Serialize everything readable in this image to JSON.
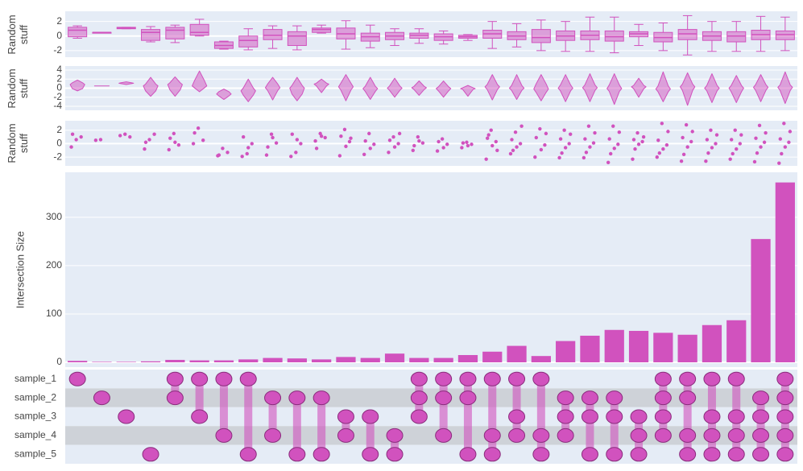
{
  "chart_data": [
    {
      "type": "box",
      "ylabel": "Random stuff",
      "color": "#d152be",
      "ylim": [
        -2.9,
        3.4
      ],
      "yticks": [
        -2,
        0,
        2
      ],
      "values": [
        [
          -0.3,
          -0.1,
          0.8,
          1.2,
          1.4
        ],
        [
          0.5,
          0.5,
          0.5,
          0.5,
          0.5
        ],
        [
          1.0,
          1.0,
          1.1,
          1.2,
          1.2
        ],
        [
          -0.8,
          -0.6,
          0.5,
          0.9,
          1.3
        ],
        [
          -0.9,
          -0.4,
          0.8,
          1.2,
          1.5
        ],
        [
          0,
          0.1,
          0.5,
          1.6,
          2.3
        ],
        [
          -1.8,
          -1.7,
          -1.3,
          -0.8,
          -0.7
        ],
        [
          -1.9,
          -1.5,
          -0.6,
          0,
          1.0
        ],
        [
          -1.7,
          -0.5,
          0.1,
          0.9,
          1.4
        ],
        [
          -1.9,
          -1.3,
          0,
          0.6,
          1.4
        ],
        [
          0.4,
          0.5,
          0.9,
          1.1,
          1.5
        ],
        [
          -1.8,
          -0.4,
          0.3,
          1.1,
          2.1
        ],
        [
          -1.6,
          -0.7,
          -0.1,
          0.4,
          1.5
        ],
        [
          -1.3,
          -0.5,
          0,
          0.5,
          1.0
        ],
        [
          -1.0,
          -0.3,
          0.1,
          0.4,
          1.0
        ],
        [
          -1.1,
          -0.6,
          -0.1,
          0.3,
          0.7
        ],
        [
          -0.6,
          -0.3,
          -0.1,
          0.1,
          0.2
        ],
        [
          -1.7,
          -0.3,
          0.3,
          0.8,
          2.0
        ],
        [
          -1.5,
          -0.5,
          0,
          0.6,
          1.7
        ],
        [
          -2.0,
          -0.9,
          -0.2,
          0.9,
          2.2
        ],
        [
          -2.1,
          -0.6,
          0,
          0.7,
          2.0
        ],
        [
          -2.1,
          -0.5,
          0.1,
          0.7,
          2.6
        ],
        [
          -2.3,
          -0.7,
          -0.1,
          0.7,
          2.6
        ],
        [
          -1.3,
          -0.1,
          0.3,
          0.6,
          1.6
        ],
        [
          -2.0,
          -0.8,
          -0.2,
          0.5,
          1.8
        ],
        [
          -2.6,
          -0.5,
          0.3,
          0.9,
          2.8
        ],
        [
          -2.1,
          -0.6,
          0,
          0.6,
          2.0
        ],
        [
          -2.1,
          -0.8,
          0,
          0.6,
          2.0
        ],
        [
          -2.1,
          -0.5,
          0.2,
          0.8,
          2.7
        ],
        [
          -2.0,
          -0.5,
          0.2,
          0.7,
          2.6
        ]
      ]
    },
    {
      "type": "violin",
      "ylabel": "Random stuff",
      "color": "#d152be",
      "ylim": [
        -4.9,
        4.9
      ],
      "yticks": [
        -4,
        -2,
        0,
        2,
        4
      ],
      "values": [
        [
          -0.6,
          -0.1,
          0.8,
          1.2,
          1.8
        ],
        [
          0.5,
          0.5,
          0.5,
          0.5,
          0.5
        ],
        [
          0.8,
          1.0,
          1.1,
          1.2,
          1.4
        ],
        [
          -1.8,
          -0.6,
          0.5,
          0.9,
          2.4
        ],
        [
          -1.8,
          -0.4,
          0.8,
          1.2,
          2.5
        ],
        [
          -0.8,
          0.1,
          0.5,
          1.6,
          3.8
        ],
        [
          -2.5,
          -1.7,
          -1.3,
          -0.8,
          -0.2
        ],
        [
          -3.0,
          -1.5,
          -0.6,
          0,
          2.0
        ],
        [
          -2.6,
          -0.5,
          0.1,
          0.9,
          2.4
        ],
        [
          -2.8,
          -1.3,
          0,
          0.6,
          2.4
        ],
        [
          -1.0,
          0.5,
          0.9,
          1.1,
          2.0
        ],
        [
          -2.8,
          -0.4,
          0.3,
          1.1,
          3.0
        ],
        [
          -2.5,
          -0.7,
          -0.1,
          0.4,
          2.4
        ],
        [
          -2.0,
          -0.5,
          0,
          0.5,
          2.2
        ],
        [
          -1.6,
          -0.3,
          0.1,
          0.4,
          1.6
        ],
        [
          -2.0,
          -0.6,
          -0.1,
          0.3,
          1.6
        ],
        [
          -1.8,
          -0.3,
          -0.1,
          0.1,
          0.6
        ],
        [
          -2.6,
          -0.3,
          0.3,
          0.8,
          3.0
        ],
        [
          -2.5,
          -0.5,
          0,
          0.6,
          3.0
        ],
        [
          -2.8,
          -0.9,
          -0.2,
          0.9,
          3.0
        ],
        [
          -3.0,
          -0.6,
          0,
          0.7,
          3.0
        ],
        [
          -3.0,
          -0.5,
          0.1,
          0.7,
          3.2
        ],
        [
          -3.6,
          -0.7,
          -0.1,
          0.7,
          3.2
        ],
        [
          -2.0,
          -0.1,
          0.3,
          0.6,
          2.2
        ],
        [
          -3.0,
          -0.8,
          -0.2,
          0.5,
          3.6
        ],
        [
          -3.8,
          -0.5,
          0.3,
          0.9,
          3.4
        ],
        [
          -3.2,
          -0.6,
          0,
          0.6,
          3.2
        ],
        [
          -3.2,
          -0.8,
          0,
          0.6,
          2.8
        ],
        [
          -3.0,
          -0.5,
          0.2,
          0.8,
          3.0
        ],
        [
          -3.4,
          -0.5,
          0.2,
          0.7,
          3.6
        ]
      ]
    },
    {
      "type": "strip",
      "ylabel": "Random stuff",
      "color": "#d152be",
      "ylim": [
        -3.3,
        3.4
      ],
      "yticks": [
        -2,
        0,
        2
      ],
      "values": [
        [
          -0.5,
          0.6,
          1.0,
          1.4
        ],
        [
          0.5,
          0.6
        ],
        [
          1.2,
          1.4,
          1.0
        ],
        [
          -0.8,
          0.6,
          1.4,
          0.2
        ],
        [
          -0.9,
          1.5,
          -0.2,
          0.8,
          0.2
        ],
        [
          0,
          2.3,
          0.5,
          1.6
        ],
        [
          -1.8,
          -0.7,
          -1.3,
          -1.7
        ],
        [
          -1.9,
          -1.5,
          0,
          1.0,
          -0.6
        ],
        [
          -1.7,
          1.4,
          0.1,
          -0.5,
          0.9
        ],
        [
          -1.9,
          -1.3,
          0,
          1.4,
          0.6
        ],
        [
          0.4,
          1.5,
          0.9,
          -0.7,
          1.1
        ],
        [
          -1.8,
          2.1,
          0.3,
          1.1,
          -0.4,
          0.8
        ],
        [
          -1.6,
          1.5,
          -0.1,
          0.4,
          -0.7
        ],
        [
          -1.3,
          1.0,
          0,
          0.5,
          -0.5,
          1.5
        ],
        [
          -1.0,
          1.0,
          0.1,
          -0.3,
          0.4
        ],
        [
          -1.1,
          0.7,
          -0.1,
          0.3,
          -0.6
        ],
        [
          -0.6,
          0.2,
          -0.1,
          0.1,
          -0.3
        ],
        [
          -2.3,
          2.0,
          0.3,
          0.8,
          -0.3,
          -1.0,
          1.3
        ],
        [
          -1.5,
          1.7,
          0,
          0.6,
          -0.5,
          2.6,
          -1.0
        ],
        [
          -2.0,
          2.2,
          -0.2,
          0.9,
          -0.9,
          1.5
        ],
        [
          -2.1,
          2.0,
          0,
          0.7,
          -0.6,
          1.4,
          -1.4
        ],
        [
          -2.1,
          2.6,
          0.1,
          0.7,
          -0.5,
          1.6,
          -1.3
        ],
        [
          -2.8,
          2.6,
          -0.1,
          0.7,
          -0.7,
          1.7,
          -1.5
        ],
        [
          -2.3,
          1.6,
          0.3,
          0.6,
          -0.1,
          1.0,
          -0.8
        ],
        [
          -2.0,
          3.0,
          -0.2,
          0.5,
          -0.8,
          1.8,
          -1.4
        ],
        [
          -2.6,
          2.8,
          0.3,
          0.9,
          -0.5,
          1.8,
          -1.6
        ],
        [
          -2.6,
          2.0,
          0,
          0.6,
          -0.6,
          1.3,
          -1.4
        ],
        [
          -2.3,
          2.0,
          0,
          0.6,
          -0.8,
          1.3,
          -1.5
        ],
        [
          -2.7,
          2.7,
          0.2,
          0.8,
          -0.5,
          1.6,
          -1.4
        ],
        [
          -2.9,
          3.0,
          0.2,
          0.7,
          -0.5,
          1.8,
          -1.5
        ]
      ]
    },
    {
      "type": "bar",
      "ylabel": "Intersection Size",
      "color": "#d152be",
      "ylim": [
        -10,
        393
      ],
      "yticks": [
        0,
        100,
        200,
        300
      ],
      "grid": true,
      "values": [
        3,
        1,
        1,
        2,
        5,
        4,
        4,
        6,
        9,
        8,
        6,
        11,
        9,
        18,
        9,
        9,
        15,
        22,
        34,
        13,
        44,
        55,
        67,
        65,
        61,
        57,
        77,
        87,
        255,
        372
      ],
      "sets": [
        "sample_1",
        "sample_2",
        "sample_3",
        "sample_4",
        "sample_5"
      ],
      "membership": [
        [
          0
        ],
        [
          1
        ],
        [
          2
        ],
        [
          4
        ],
        [
          0,
          1
        ],
        [
          0,
          2
        ],
        [
          0,
          3
        ],
        [
          0,
          4
        ],
        [
          1,
          3
        ],
        [
          1,
          4
        ],
        [
          1,
          4
        ],
        [
          2,
          3
        ],
        [
          2,
          4
        ],
        [
          3,
          4
        ],
        [
          0,
          1,
          2
        ],
        [
          0,
          1,
          3
        ],
        [
          0,
          1,
          4
        ],
        [
          0,
          3,
          4
        ],
        [
          0,
          2,
          3
        ],
        [
          0,
          3,
          4
        ],
        [
          1,
          2,
          3
        ],
        [
          1,
          2,
          4
        ],
        [
          1,
          2,
          4
        ],
        [
          2,
          3,
          4
        ],
        [
          0,
          1,
          2,
          3
        ],
        [
          0,
          1,
          3,
          4
        ],
        [
          0,
          2,
          3,
          4
        ],
        [
          0,
          2,
          3,
          4
        ],
        [
          1,
          2,
          3,
          4
        ],
        [
          0,
          1,
          2,
          3,
          4
        ]
      ]
    }
  ]
}
